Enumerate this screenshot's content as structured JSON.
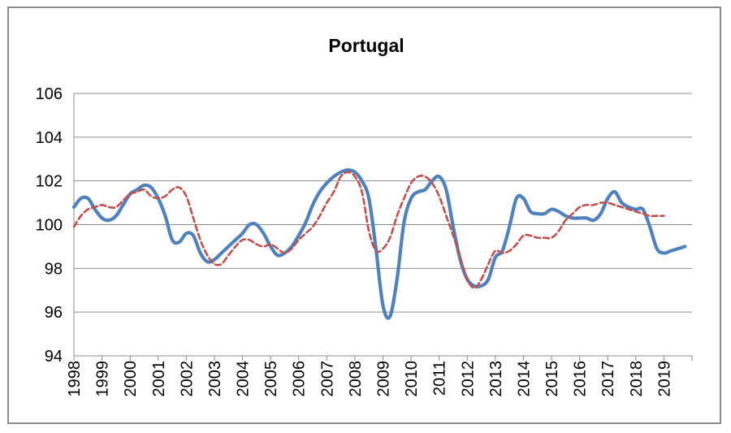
{
  "chart_data": {
    "type": "line",
    "title": "Portugal",
    "xlabel": "",
    "ylabel": "",
    "ylim": [
      94,
      106
    ],
    "xlim": [
      1998.0,
      2020.0
    ],
    "yticks": [
      94,
      96,
      98,
      100,
      102,
      104,
      106
    ],
    "xticks": [
      "1998",
      "1999",
      "2000",
      "2001",
      "2002",
      "2003",
      "2004",
      "2005",
      "2006",
      "2007",
      "2008",
      "2009",
      "2010",
      "2011",
      "2012",
      "2013",
      "2014",
      "2015",
      "2016",
      "2017",
      "2018",
      "2019"
    ],
    "grid": "horizontal",
    "legend": "none",
    "series": [
      {
        "color": "#4f81bd",
        "style": "solid",
        "points": [
          [
            1998.0,
            100.8
          ],
          [
            1998.25,
            101.2
          ],
          [
            1998.5,
            101.2
          ],
          [
            1998.75,
            100.7
          ],
          [
            1999.0,
            100.3
          ],
          [
            1999.25,
            100.2
          ],
          [
            1999.5,
            100.4
          ],
          [
            1999.75,
            100.9
          ],
          [
            2000.0,
            101.4
          ],
          [
            2000.25,
            101.6
          ],
          [
            2000.5,
            101.8
          ],
          [
            2000.75,
            101.7
          ],
          [
            2001.0,
            101.2
          ],
          [
            2001.25,
            100.4
          ],
          [
            2001.5,
            99.3
          ],
          [
            2001.75,
            99.2
          ],
          [
            2002.0,
            99.6
          ],
          [
            2002.25,
            99.5
          ],
          [
            2002.5,
            98.7
          ],
          [
            2002.75,
            98.3
          ],
          [
            2003.0,
            98.4
          ],
          [
            2003.25,
            98.7
          ],
          [
            2003.5,
            99.0
          ],
          [
            2003.75,
            99.3
          ],
          [
            2004.0,
            99.6
          ],
          [
            2004.25,
            100.0
          ],
          [
            2004.5,
            100.0
          ],
          [
            2004.75,
            99.6
          ],
          [
            2005.0,
            99.0
          ],
          [
            2005.25,
            98.6
          ],
          [
            2005.5,
            98.7
          ],
          [
            2005.75,
            99.0
          ],
          [
            2006.0,
            99.5
          ],
          [
            2006.25,
            100.1
          ],
          [
            2006.5,
            100.9
          ],
          [
            2006.75,
            101.5
          ],
          [
            2007.0,
            101.9
          ],
          [
            2007.25,
            102.2
          ],
          [
            2007.5,
            102.4
          ],
          [
            2007.75,
            102.5
          ],
          [
            2008.0,
            102.4
          ],
          [
            2008.25,
            102.0
          ],
          [
            2008.5,
            101.2
          ],
          [
            2008.75,
            98.9
          ],
          [
            2009.0,
            96.3
          ],
          [
            2009.25,
            95.8
          ],
          [
            2009.5,
            97.5
          ],
          [
            2009.75,
            100.1
          ],
          [
            2010.0,
            101.2
          ],
          [
            2010.25,
            101.5
          ],
          [
            2010.5,
            101.6
          ],
          [
            2010.75,
            102.0
          ],
          [
            2011.0,
            102.2
          ],
          [
            2011.25,
            101.6
          ],
          [
            2011.5,
            99.9
          ],
          [
            2011.75,
            98.4
          ],
          [
            2012.0,
            97.5
          ],
          [
            2012.25,
            97.2
          ],
          [
            2012.5,
            97.2
          ],
          [
            2012.75,
            97.5
          ],
          [
            2013.0,
            98.5
          ],
          [
            2013.25,
            98.8
          ],
          [
            2013.5,
            99.9
          ],
          [
            2013.75,
            101.2
          ],
          [
            2014.0,
            101.2
          ],
          [
            2014.25,
            100.6
          ],
          [
            2014.5,
            100.5
          ],
          [
            2014.75,
            100.5
          ],
          [
            2015.0,
            100.7
          ],
          [
            2015.25,
            100.6
          ],
          [
            2015.5,
            100.4
          ],
          [
            2015.75,
            100.3
          ],
          [
            2016.0,
            100.3
          ],
          [
            2016.25,
            100.3
          ],
          [
            2016.5,
            100.2
          ],
          [
            2016.75,
            100.5
          ],
          [
            2017.0,
            101.2
          ],
          [
            2017.25,
            101.5
          ],
          [
            2017.5,
            101.0
          ],
          [
            2017.75,
            100.8
          ],
          [
            2018.0,
            100.7
          ],
          [
            2018.25,
            100.7
          ],
          [
            2018.5,
            99.9
          ],
          [
            2018.75,
            98.9
          ],
          [
            2019.0,
            98.7
          ],
          [
            2019.25,
            98.8
          ],
          [
            2019.5,
            98.9
          ],
          [
            2019.75,
            99.0
          ]
        ]
      },
      {
        "color": "#c0504d",
        "style": "dashed",
        "points": [
          [
            1998.0,
            99.9
          ],
          [
            1998.25,
            100.4
          ],
          [
            1998.5,
            100.7
          ],
          [
            1998.75,
            100.8
          ],
          [
            1999.0,
            100.9
          ],
          [
            1999.25,
            100.8
          ],
          [
            1999.5,
            100.8
          ],
          [
            1999.75,
            101.1
          ],
          [
            2000.0,
            101.4
          ],
          [
            2000.25,
            101.5
          ],
          [
            2000.5,
            101.6
          ],
          [
            2000.75,
            101.3
          ],
          [
            2001.0,
            101.2
          ],
          [
            2001.25,
            101.3
          ],
          [
            2001.5,
            101.6
          ],
          [
            2001.75,
            101.7
          ],
          [
            2002.0,
            101.3
          ],
          [
            2002.25,
            100.3
          ],
          [
            2002.5,
            99.3
          ],
          [
            2002.75,
            98.6
          ],
          [
            2003.0,
            98.2
          ],
          [
            2003.25,
            98.2
          ],
          [
            2003.5,
            98.6
          ],
          [
            2003.75,
            99.0
          ],
          [
            2004.0,
            99.3
          ],
          [
            2004.25,
            99.3
          ],
          [
            2004.5,
            99.1
          ],
          [
            2004.75,
            99.0
          ],
          [
            2005.0,
            99.1
          ],
          [
            2005.25,
            98.9
          ],
          [
            2005.5,
            98.7
          ],
          [
            2005.75,
            98.9
          ],
          [
            2006.0,
            99.3
          ],
          [
            2006.25,
            99.6
          ],
          [
            2006.5,
            99.9
          ],
          [
            2006.75,
            100.4
          ],
          [
            2007.0,
            101.0
          ],
          [
            2007.25,
            101.5
          ],
          [
            2007.5,
            102.2
          ],
          [
            2007.75,
            102.4
          ],
          [
            2008.0,
            102.2
          ],
          [
            2008.25,
            101.5
          ],
          [
            2008.5,
            99.7
          ],
          [
            2008.75,
            98.8
          ],
          [
            2009.0,
            98.9
          ],
          [
            2009.25,
            99.4
          ],
          [
            2009.5,
            100.4
          ],
          [
            2009.75,
            101.2
          ],
          [
            2010.0,
            101.9
          ],
          [
            2010.25,
            102.2
          ],
          [
            2010.5,
            102.2
          ],
          [
            2010.75,
            101.9
          ],
          [
            2011.0,
            101.3
          ],
          [
            2011.25,
            100.4
          ],
          [
            2011.5,
            99.5
          ],
          [
            2011.75,
            98.5
          ],
          [
            2012.0,
            97.5
          ],
          [
            2012.25,
            97.1
          ],
          [
            2012.5,
            97.5
          ],
          [
            2012.75,
            98.2
          ],
          [
            2013.0,
            98.8
          ],
          [
            2013.25,
            98.7
          ],
          [
            2013.5,
            98.8
          ],
          [
            2013.75,
            99.1
          ],
          [
            2014.0,
            99.5
          ],
          [
            2014.25,
            99.5
          ],
          [
            2014.5,
            99.4
          ],
          [
            2014.75,
            99.4
          ],
          [
            2015.0,
            99.4
          ],
          [
            2015.25,
            99.7
          ],
          [
            2015.5,
            100.2
          ],
          [
            2015.75,
            100.5
          ],
          [
            2016.0,
            100.8
          ],
          [
            2016.25,
            100.9
          ],
          [
            2016.5,
            100.9
          ],
          [
            2016.75,
            101.0
          ],
          [
            2017.0,
            101.0
          ],
          [
            2017.25,
            100.9
          ],
          [
            2017.5,
            100.8
          ],
          [
            2017.75,
            100.7
          ],
          [
            2018.0,
            100.6
          ],
          [
            2018.25,
            100.5
          ],
          [
            2018.5,
            100.4
          ],
          [
            2018.75,
            100.4
          ],
          [
            2019.0,
            100.4
          ]
        ]
      }
    ]
  }
}
